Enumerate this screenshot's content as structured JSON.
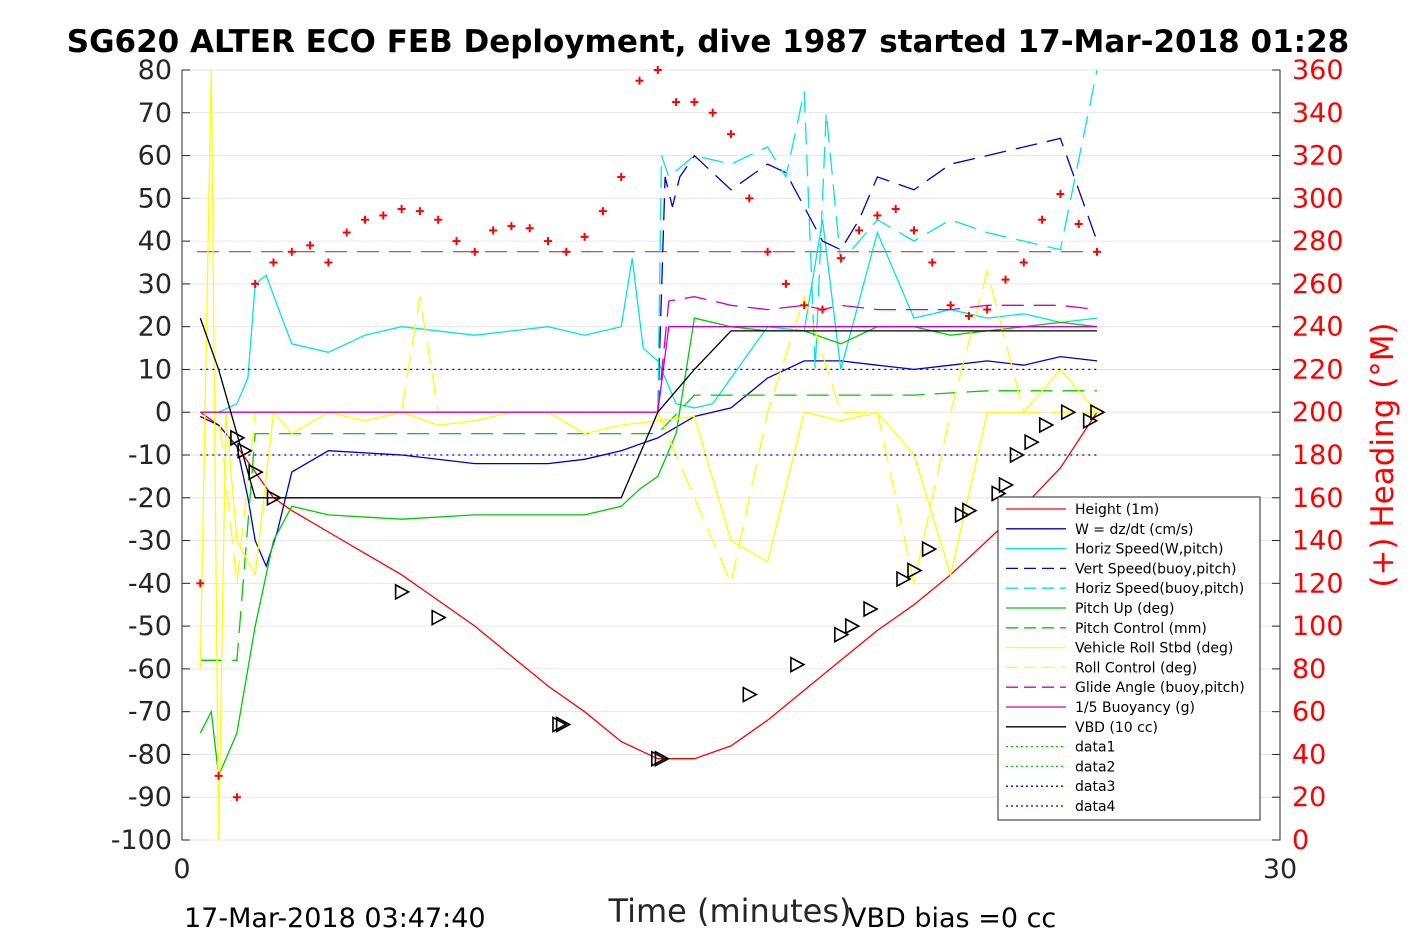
{
  "title": "SG620 ALTER ECO FEB Deployment, dive 1987 started 17-Mar-2018 01:28",
  "footer": {
    "start_time": "17-Mar-2018 03:47:40",
    "vbd_bias": "VBD bias =0 cc"
  },
  "chart_data": {
    "type": "line",
    "title": "SG620 ALTER ECO FEB Deployment, dive 1987 started 17-Mar-2018 01:28",
    "xlabel": "Time (minutes)",
    "ylabel": "",
    "ylabel_right": "(+) Heading (°M)",
    "xlim": [
      0,
      30
    ],
    "ylim": [
      -100,
      80
    ],
    "ylim_right": [
      0,
      360
    ],
    "x_ticks": [
      "0",
      "30"
    ],
    "y_ticks": [
      "80",
      "70",
      "60",
      "50",
      "40",
      "30",
      "20",
      "10",
      "0",
      "-10",
      "-20",
      "-30",
      "-40",
      "-50",
      "-60",
      "-70",
      "-80",
      "-90",
      "-100"
    ],
    "y_ticks_right": [
      "360",
      "340",
      "320",
      "300",
      "280",
      "260",
      "240",
      "220",
      "200",
      "180",
      "160",
      "140",
      "120",
      "100",
      "80",
      "60",
      "40",
      "20",
      "0"
    ],
    "grid": true,
    "legend_position": "lower-right",
    "colors": {
      "height": "#ff0000",
      "w": "#0000cc",
      "horiz_w": "#00e5e5",
      "pitch": "#00cc00",
      "roll": "#ffff00",
      "glide": "#cc00cc",
      "vbd": "#000000",
      "heading": "#ff0000"
    },
    "series": [
      {
        "name": "Height (1m)",
        "style": "solid",
        "color": "#ff0000",
        "x": [
          0.5,
          1.0,
          1.5,
          2.0,
          2.5,
          3.0,
          4.0,
          5.0,
          6.0,
          7.0,
          8.0,
          9.0,
          10.0,
          11.0,
          12.0,
          13.0,
          14.0,
          15.0,
          16.0,
          17.0,
          18.0,
          19.0,
          20.0,
          21.0,
          22.0,
          23.0,
          24.0,
          25.0
        ],
        "y": [
          0,
          -3,
          -8,
          -14,
          -20,
          -23,
          -28,
          -33,
          -38,
          -44,
          -50,
          -57,
          -64,
          -70,
          -77,
          -81,
          -81,
          -78,
          -72,
          -65,
          -58,
          -51,
          -45,
          -38,
          -30,
          -22,
          -13,
          0
        ]
      },
      {
        "name": "W = dz/dt (cm/s)",
        "style": "solid",
        "color": "#0000cc",
        "x": [
          0.5,
          1.0,
          1.5,
          1.8,
          2.0,
          2.3,
          2.6,
          3.0,
          4.0,
          6.0,
          8.0,
          10.0,
          11.0,
          12.0,
          13.0,
          14.0,
          15.0,
          16.0,
          17.0,
          18.0,
          19.0,
          20.0,
          21.0,
          22.0,
          23.0,
          24.0,
          25.0
        ],
        "y": [
          -1,
          -3,
          -8,
          -20,
          -30,
          -36,
          -28,
          -14,
          -9,
          -10,
          -12,
          -12,
          -11,
          -9,
          -6,
          -1,
          1,
          8,
          12,
          12,
          11,
          10,
          11,
          12,
          11,
          13,
          12
        ]
      },
      {
        "name": "Horiz Speed(W,pitch)",
        "style": "solid",
        "color": "#00e5e5",
        "x": [
          0.5,
          1.0,
          1.5,
          1.8,
          2.0,
          2.3,
          2.6,
          3.0,
          4.0,
          5.0,
          6.0,
          8.0,
          10.0,
          11.0,
          12.0,
          12.3,
          12.6,
          13.0,
          13.5,
          14.0,
          14.5,
          15.0,
          16.0,
          17.0,
          17.5,
          18.0,
          19.0,
          20.0,
          21.0,
          22.0,
          23.0,
          24.0,
          25.0
        ],
        "y": [
          0,
          0,
          2,
          8,
          30,
          32,
          25,
          16,
          14,
          18,
          20,
          18,
          20,
          18,
          20,
          36,
          15,
          12,
          2,
          1,
          2,
          8,
          20,
          19,
          45,
          10,
          42,
          22,
          24,
          22,
          23,
          21,
          22
        ]
      },
      {
        "name": "Vert Speed(buoy,pitch)",
        "style": "dashed",
        "color": "#0000cc",
        "x": [
          13.0,
          13.2,
          13.4,
          13.6,
          14.0,
          15.0,
          16.0,
          16.5,
          17.0,
          17.5,
          18.0,
          18.5,
          19.0,
          20.0,
          21.0,
          22.0,
          23.0,
          24.0,
          25.0
        ],
        "y": [
          0,
          55,
          48,
          55,
          60,
          52,
          58,
          56,
          48,
          40,
          38,
          45,
          55,
          52,
          58,
          60,
          62,
          64,
          40
        ]
      },
      {
        "name": "Horiz Speed(buoy,pitch)",
        "style": "dashed",
        "color": "#00e5e5",
        "x": [
          13.0,
          13.1,
          13.3,
          14.0,
          15.0,
          16.0,
          16.5,
          17.0,
          17.3,
          17.6,
          18.0,
          19.0,
          20.0,
          21.0,
          22.0,
          23.0,
          24.0,
          25.0
        ],
        "y": [
          0,
          60,
          55,
          60,
          58,
          62,
          55,
          75,
          10,
          70,
          35,
          45,
          40,
          45,
          42,
          40,
          38,
          80
        ]
      },
      {
        "name": "Pitch Up (deg)",
        "style": "solid",
        "color": "#00cc00",
        "x": [
          0.5,
          0.8,
          1.0,
          1.5,
          2.0,
          2.5,
          3.0,
          4.0,
          6.0,
          8.0,
          10.0,
          11.0,
          12.0,
          12.5,
          13.0,
          13.5,
          14.0,
          15.0,
          16.0,
          17.0,
          18.0,
          19.0,
          20.0,
          21.0,
          22.0,
          23.0,
          24.0,
          25.0
        ],
        "y": [
          -75,
          -70,
          -85,
          -75,
          -50,
          -30,
          -22,
          -24,
          -25,
          -24,
          -24,
          -24,
          -22,
          -18,
          -15,
          -5,
          22,
          20,
          19,
          19,
          16,
          20,
          20,
          18,
          19,
          20,
          21,
          20
        ]
      },
      {
        "name": "Pitch Control (mm)",
        "style": "dashed",
        "color": "#00cc00",
        "x": [
          0.5,
          1.0,
          1.5,
          2.0,
          3.0,
          5.0,
          8.0,
          10.0,
          12.0,
          13.0,
          14.0,
          16.0,
          18.0,
          20.0,
          22.0,
          24.0,
          25.0
        ],
        "y": [
          -58,
          -58,
          -58,
          -5,
          -5,
          -5,
          -5,
          -5,
          -5,
          -5,
          4,
          4,
          4,
          4,
          5,
          5,
          5
        ]
      },
      {
        "name": "Vehicle Roll Stbd (deg)",
        "style": "solid",
        "color": "#ffff00",
        "x": [
          0.5,
          0.8,
          1.0,
          1.2,
          1.5,
          2.0,
          2.5,
          3.0,
          4.0,
          5.0,
          6.0,
          7.0,
          8.0,
          9.0,
          10.0,
          11.0,
          12.0,
          13.0,
          14.0,
          15.0,
          16.0,
          17.0,
          18.0,
          19.0,
          20.0,
          21.0,
          22.0,
          23.0,
          24.0,
          25.0
        ],
        "y": [
          -60,
          80,
          -100,
          0,
          -30,
          -38,
          0,
          -5,
          0,
          -2,
          0,
          -3,
          -2,
          0,
          0,
          -5,
          -3,
          -2,
          -1,
          -30,
          -35,
          0,
          -2,
          0,
          -10,
          -38,
          0,
          0,
          10,
          0
        ]
      },
      {
        "name": "Roll Control (deg)",
        "style": "dashed",
        "color": "#ffff00",
        "x": [
          0.5,
          1.0,
          1.5,
          2.0,
          3.0,
          6.0,
          6.5,
          7.0,
          8.0,
          10.0,
          12.0,
          13.0,
          15.0,
          16.0,
          17.0,
          18.0,
          19.0,
          20.0,
          21.0,
          22.0,
          23.0,
          24.0,
          25.0
        ],
        "y": [
          0,
          0,
          -40,
          0,
          0,
          0,
          27,
          0,
          0,
          0,
          0,
          0,
          -40,
          0,
          27,
          0,
          0,
          -40,
          0,
          33,
          0,
          0,
          0
        ]
      },
      {
        "name": "Glide Angle (buoy,pitch)",
        "style": "dashed",
        "color": "#cc00cc",
        "x": [
          13.0,
          13.3,
          14.0,
          15.0,
          16.0,
          17.0,
          17.5,
          18.0,
          19.0,
          20.0,
          21.0,
          22.0,
          23.0,
          24.0,
          25.0
        ],
        "y": [
          0,
          26,
          27,
          25,
          24,
          25,
          24,
          25,
          24,
          24,
          24,
          25,
          25,
          25,
          24
        ]
      },
      {
        "name": "1/5 Buoyancy (g)",
        "style": "solid",
        "color": "#cc00cc",
        "x": [
          0.5,
          13.0,
          13.3,
          25.0
        ],
        "y": [
          0,
          0,
          20,
          20
        ]
      },
      {
        "name": "VBD (10 cc)",
        "style": "solid",
        "color": "#000000",
        "x": [
          0.5,
          1.0,
          1.5,
          2.0,
          3.0,
          6.0,
          8.0,
          10.0,
          11.0,
          12.0,
          13.0,
          14.0,
          15.0,
          16.0,
          17.0,
          18.0,
          19.0,
          20.0,
          21.0,
          22.0,
          23.0,
          24.0,
          25.0
        ],
        "y": [
          22,
          10,
          -5,
          -20,
          -20,
          -20,
          -20,
          -20,
          -20,
          -20,
          0,
          10,
          19,
          19,
          19,
          19,
          19,
          19,
          19,
          19,
          19,
          19,
          19
        ]
      },
      {
        "name": "data1",
        "style": "dotted",
        "color": "#00cc00",
        "x": [],
        "y": []
      },
      {
        "name": "data2",
        "style": "dotted",
        "color": "#00cc00",
        "x": [],
        "y": []
      },
      {
        "name": "data3",
        "style": "dotted",
        "color": "#0000cc",
        "x": [
          0.5,
          25.0
        ],
        "y": [
          10,
          10
        ]
      },
      {
        "name": "data4",
        "style": "dotted",
        "color": "#0000cc",
        "x": [
          0.5,
          25.0
        ],
        "y": [
          -10,
          -10
        ]
      }
    ],
    "heading_reference": 275,
    "heading_points": {
      "x": [
        0.5,
        1.0,
        1.5,
        2.0,
        2.5,
        3.0,
        3.5,
        4.0,
        4.5,
        5.0,
        5.5,
        6.0,
        6.5,
        7.0,
        7.5,
        8.0,
        8.5,
        9.0,
        9.5,
        10.0,
        10.5,
        11.0,
        11.5,
        12.0,
        12.5,
        13.0,
        13.5,
        14.0,
        14.5,
        15.0,
        15.5,
        16.0,
        16.5,
        17.0,
        17.5,
        18.0,
        18.5,
        19.0,
        19.5,
        20.0,
        20.5,
        21.0,
        21.5,
        22.0,
        22.5,
        23.0,
        23.5,
        24.0,
        24.5,
        25.0
      ],
      "y": [
        120,
        30,
        20,
        260,
        270,
        275,
        278,
        270,
        284,
        290,
        292,
        295,
        294,
        290,
        280,
        275,
        285,
        287,
        286,
        280,
        275,
        282,
        294,
        310,
        355,
        360,
        345,
        345,
        340,
        330,
        300,
        275,
        260,
        250,
        248,
        272,
        285,
        292,
        295,
        285,
        270,
        250,
        245,
        248,
        262,
        270,
        290,
        302,
        288,
        275
      ]
    },
    "markers": {
      "x": [
        1.5,
        1.7,
        2.0,
        2.5,
        6.0,
        7.0,
        10.3,
        10.4,
        13.0,
        13.1,
        15.5,
        16.8,
        18.0,
        18.3,
        18.8,
        19.7,
        20.0,
        20.4,
        21.3,
        21.5,
        22.3,
        22.5,
        22.8,
        23.2,
        23.6,
        24.2,
        24.8,
        25.0
      ],
      "y": [
        -6,
        -9,
        -14,
        -20,
        -42,
        -48,
        -73,
        -73,
        -81,
        -81,
        -66,
        -59,
        -52,
        -50,
        -46,
        -39,
        -37,
        -32,
        -24,
        -23,
        -19,
        -17,
        -10,
        -7,
        -3,
        0,
        -2,
        0
      ]
    }
  }
}
